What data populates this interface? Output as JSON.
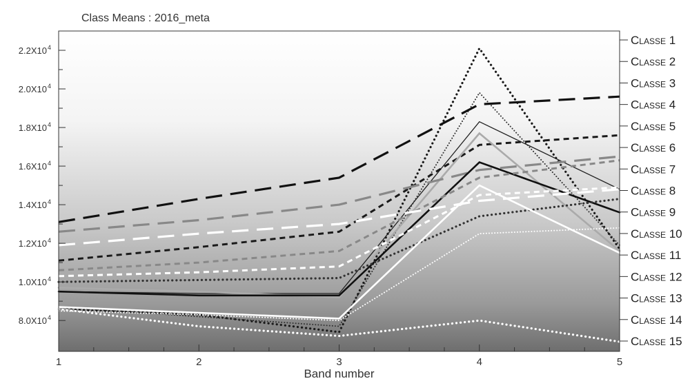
{
  "chart_data": {
    "type": "line",
    "title": "Class Means : 2016_meta",
    "xlabel": "Band number",
    "ylabel": "",
    "x": [
      1,
      2,
      3,
      4,
      5
    ],
    "xlim": [
      1,
      5
    ],
    "ylim": [
      6400,
      23000
    ],
    "x_ticks": [
      "1",
      "2",
      "3",
      "4",
      "5"
    ],
    "y_ticks": [
      {
        "value": 8000,
        "label": "8.0X10"
      },
      {
        "value": 10000,
        "label": "1.0X10"
      },
      {
        "value": 12000,
        "label": "1.2X10"
      },
      {
        "value": 14000,
        "label": "1.4X10"
      },
      {
        "value": 16000,
        "label": "1.6X10"
      },
      {
        "value": 18000,
        "label": "1.8X10"
      },
      {
        "value": 20000,
        "label": "2.0X10"
      },
      {
        "value": 22000,
        "label": "2.2X10"
      }
    ],
    "y_tick_exponent": "4",
    "background": "vertical gradient, white at top to dark gray at bottom",
    "grid": false,
    "legend_position": "right",
    "series": [
      {
        "name": "Classe 1",
        "values": [
          8600,
          8300,
          7400,
          22100,
          11700
        ],
        "color": "#1a1a1a",
        "style": "dotted-bold"
      },
      {
        "name": "Classe 2",
        "values": [
          8700,
          8200,
          7700,
          19800,
          11900
        ],
        "color": "#333333",
        "style": "dotted-thin"
      },
      {
        "name": "Classe 3",
        "values": [
          13100,
          14300,
          15400,
          19200,
          19600
        ],
        "color": "#111111",
        "style": "long-dash"
      },
      {
        "name": "Classe 4",
        "values": [
          9500,
          9400,
          9400,
          18300,
          14800
        ],
        "color": "#222222",
        "style": "solid-thin"
      },
      {
        "name": "Classe 5",
        "values": [
          11100,
          11800,
          12600,
          17100,
          17600
        ],
        "color": "#1a1a1a",
        "style": "short-dash"
      },
      {
        "name": "Classe 6",
        "values": [
          9700,
          9500,
          9200,
          17700,
          11600
        ],
        "color": "#aaaaaa",
        "style": "solid-thick"
      },
      {
        "name": "Classe 7",
        "values": [
          12600,
          13200,
          14000,
          15800,
          16500
        ],
        "color": "#888888",
        "style": "long-dash"
      },
      {
        "name": "Classe 8",
        "values": [
          9500,
          9300,
          9300,
          16200,
          13600
        ],
        "color": "#111111",
        "style": "solid-thick"
      },
      {
        "name": "Classe 9",
        "values": [
          10600,
          11000,
          11600,
          15400,
          16300
        ],
        "color": "#888888",
        "style": "short-dash"
      },
      {
        "name": "Classe 10",
        "values": [
          11900,
          12500,
          13000,
          14200,
          14800
        ],
        "color": "#ffffff",
        "style": "long-dash"
      },
      {
        "name": "Classe 11",
        "values": [
          10000,
          10100,
          10200,
          13400,
          14300
        ],
        "color": "#333333",
        "style": "dotted-bold"
      },
      {
        "name": "Classe 12",
        "values": [
          10300,
          10500,
          10800,
          14500,
          14900
        ],
        "color": "#ffffff",
        "style": "short-dash"
      },
      {
        "name": "Classe 13",
        "values": [
          8700,
          8400,
          8100,
          15000,
          11500
        ],
        "color": "#ffffff",
        "style": "solid-thick"
      },
      {
        "name": "Classe 14",
        "values": [
          8500,
          8300,
          8000,
          12500,
          12800
        ],
        "color": "#ffffff",
        "style": "dotted-thin"
      },
      {
        "name": "Classe 15",
        "values": [
          8600,
          7700,
          7200,
          8000,
          6900
        ],
        "color": "#ffffff",
        "style": "dotted-bold"
      }
    ],
    "legend_labels": [
      "Classe 1",
      "Classe 2",
      "Classe 3",
      "Classe 4",
      "Classe 5",
      "Classe 6",
      "Classe 7",
      "Classe 8",
      "Classe 9",
      "Classe 10",
      "Classe 11",
      "Classe 12",
      "Classe 13",
      "Classe 14",
      "Classe 15"
    ]
  }
}
